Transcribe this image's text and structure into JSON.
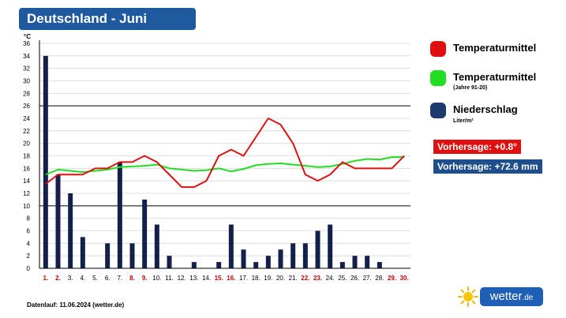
{
  "header": {
    "title": "Deutschland - Juni"
  },
  "chart_data": {
    "type": "bar+line",
    "y_unit": "°C",
    "ylim": [
      0,
      36
    ],
    "ytick_step": 2,
    "highlight_gridlines": [
      10,
      26
    ],
    "x": [
      "1.",
      "2.",
      "3.",
      "4.",
      "5.",
      "6.",
      "7.",
      "8.",
      "9.",
      "10.",
      "11.",
      "12.",
      "13.",
      "14.",
      "15.",
      "16.",
      "17.",
      "18.",
      "19.",
      "20.",
      "21.",
      "22.",
      "23.",
      "24.",
      "25.",
      "26.",
      "27.",
      "28.",
      "29.",
      "30."
    ],
    "red_days": [
      1,
      2,
      8,
      9,
      15,
      16,
      22,
      23,
      29,
      30
    ],
    "series": [
      {
        "name": "Temperaturmittel",
        "type": "line",
        "color": "#e01010",
        "values": [
          13.5,
          15,
          15,
          15,
          16,
          16,
          17,
          17,
          18,
          17,
          15,
          13,
          13,
          14,
          18,
          19,
          18,
          21,
          24,
          23,
          20,
          15,
          14,
          15,
          17,
          16,
          16,
          16,
          16,
          18
        ]
      },
      {
        "name": "Temperaturmittel (Jahre 91-20)",
        "type": "line",
        "color": "#22dd22",
        "values": [
          15,
          15.8,
          15.6,
          15.4,
          15.6,
          15.8,
          16.2,
          16.3,
          16.4,
          16.6,
          16.0,
          15.8,
          15.6,
          15.7,
          16.0,
          15.5,
          15.9,
          16.5,
          16.7,
          16.8,
          16.6,
          16.4,
          16.2,
          16.3,
          16.7,
          17.2,
          17.5,
          17.4,
          17.8,
          17.8
        ]
      },
      {
        "name": "Niederschlag",
        "type": "bar",
        "color": "#13214a",
        "values": [
          34,
          15,
          12,
          5,
          0,
          4,
          17,
          4,
          11,
          7,
          2,
          0,
          1,
          0,
          1,
          7,
          3,
          1,
          2,
          3,
          4,
          4,
          6,
          7,
          1,
          2,
          2,
          1,
          0,
          0
        ]
      }
    ]
  },
  "legend": {
    "items": [
      {
        "label": "Temperaturmittel",
        "color": "#e01010"
      },
      {
        "label": "Temperaturmittel",
        "sub": "(Jahre 91-20)",
        "color": "#22dd22"
      },
      {
        "label": "Niederschlag",
        "sub": "Liter/m²",
        "color": "#1c3a6e"
      }
    ]
  },
  "forecast": {
    "temp": {
      "text": "Vorhersage: +0.8°",
      "color": "#e01010"
    },
    "rain": {
      "text": "Vorhersage: +72.6 mm",
      "color": "#1f4f8a"
    }
  },
  "footer": {
    "text": "Datenlauf: 11.06.2024 (wetter.de)"
  },
  "logo": {
    "name": "wetter",
    "tld": ".de"
  }
}
